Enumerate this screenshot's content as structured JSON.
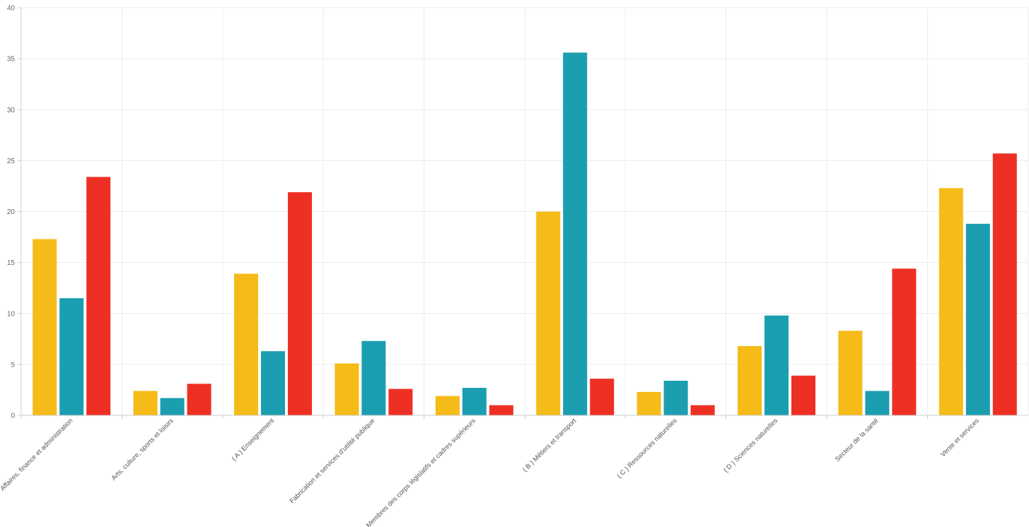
{
  "chart_data": {
    "type": "bar",
    "categories": [
      "Affaires, finance et administration",
      "Arts, culture, sports et loisirs",
      "( A ) Enseignement",
      "Fabrication et services d'utilité publique",
      "Membres des corps législatifs et cadres supérieurs",
      "( B ) Métiers et transport",
      "( C ) Ressources naturelles",
      "( D ) Sciences naturelles",
      "Secteur de la santé",
      "Vente et services"
    ],
    "series": [
      {
        "color": "#f5bb18",
        "values": [
          17.3,
          2.4,
          13.9,
          5.1,
          1.9,
          20.0,
          2.3,
          6.8,
          8.3,
          22.3
        ]
      },
      {
        "color": "#1b9eb0",
        "values": [
          11.5,
          1.7,
          6.3,
          7.3,
          2.7,
          35.6,
          3.4,
          9.8,
          2.4,
          18.8
        ]
      },
      {
        "color": "#ee3024",
        "values": [
          23.4,
          3.1,
          21.9,
          2.6,
          1.0,
          3.6,
          1.0,
          3.9,
          14.4,
          25.7
        ]
      }
    ],
    "ylim": [
      0,
      40
    ],
    "yticks": [
      "0",
      "5",
      "10",
      "15",
      "20",
      "25",
      "30",
      "35",
      "40"
    ],
    "grid": true,
    "legend": "none"
  }
}
